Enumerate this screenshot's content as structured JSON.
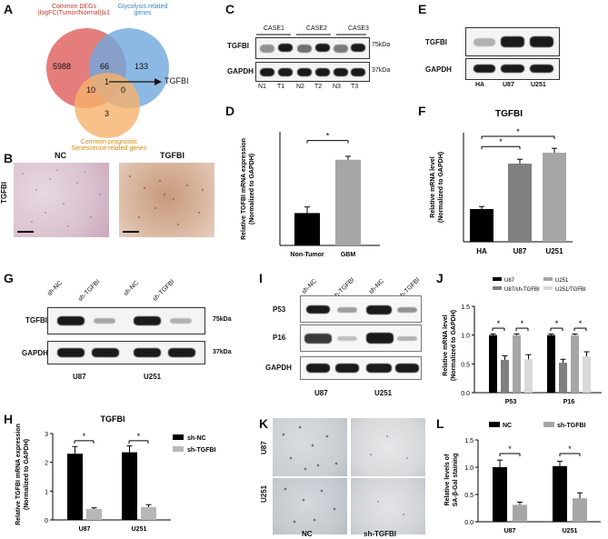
{
  "panel_labels": [
    "A",
    "B",
    "C",
    "D",
    "E",
    "F",
    "G",
    "H",
    "I",
    "J",
    "K",
    "L"
  ],
  "panel_a": {
    "set1_label_line1": "Common DEGs",
    "set1_label_line2": "|logFC(Tumor/Normal)|≥1",
    "set2_label_line1": "Glycolysis related",
    "set2_label_line2": "genes",
    "set3_label_line1": "Common prognostic",
    "set3_label_line2": "Senescence related genes",
    "counts": {
      "only1": "5988",
      "one_two": "66",
      "only2": "133",
      "one_three": "10",
      "center": "1",
      "two_three": "0",
      "only3": "3"
    },
    "arrow_label": "TGFBI",
    "colors": {
      "set1": "#e06666",
      "set2": "#6fa8dc",
      "set3": "#f6b26b"
    }
  },
  "panel_b": {
    "col1": "NC",
    "col2": "TGFBI",
    "row": "TGFBI"
  },
  "panel_c": {
    "cases": [
      "CASE1",
      "CASE2",
      "CASE3"
    ],
    "rows": [
      "TGFBI",
      "GAPDH"
    ],
    "kda": [
      "75kDa",
      "37kDa"
    ],
    "lanes": [
      "N1",
      "T1",
      "N2",
      "T2",
      "N3",
      "T3"
    ]
  },
  "panel_d": {
    "ylabel_line1": "Relative TGFBI mRNA expression",
    "ylabel_line2": "(Normalized to GAPDH)",
    "sig": "*",
    "chart_data": {
      "type": "bar",
      "categories": [
        "Non-Tumor",
        "GBM"
      ],
      "values": [
        0.37,
        0.98
      ],
      "errors": [
        0.07,
        0.04
      ],
      "ylim": [
        0,
        1.3
      ],
      "colors": [
        "#000000",
        "#a6a6a6"
      ]
    }
  },
  "panel_e": {
    "rows": [
      "TGFBI",
      "GAPDH"
    ],
    "lanes": [
      "HA",
      "U87",
      "U251"
    ]
  },
  "panel_f": {
    "title": "TGFBI",
    "ylabel_line1": "Relative mRNA level",
    "ylabel_line2": "(Normalized to GAPDH)",
    "sig": [
      "*",
      "*"
    ],
    "chart_data": {
      "type": "bar",
      "title": "TGFBI",
      "categories": [
        "HA",
        "U87",
        "U251"
      ],
      "values": [
        0.9,
        2.15,
        2.45
      ],
      "errors": [
        0.07,
        0.12,
        0.12
      ],
      "ylim": [
        0,
        3.0
      ],
      "colors": [
        "#000000",
        "#808080",
        "#a6a6a6"
      ]
    }
  },
  "panel_g": {
    "lanes": [
      "sh-NC",
      "sh-TGFBI",
      "sh-NC",
      "sh-TGFBI"
    ],
    "rows": [
      "TGFBI",
      "GAPDH"
    ],
    "kda": [
      "75kDa",
      "37kDa"
    ],
    "groups": [
      "U87",
      "U251"
    ]
  },
  "panel_h": {
    "title": "TGFBI",
    "ylabel_line1": "Relative TGFBI mRNA expression",
    "ylabel_line2": "(Normalized to GAPDH)",
    "yticks": [
      "0",
      "1",
      "2",
      "3"
    ],
    "sig": [
      "*",
      "*"
    ],
    "chart_data": {
      "type": "bar",
      "title": "TGFBI",
      "categories": [
        "U87",
        "U251"
      ],
      "series": [
        {
          "name": "sh-NC",
          "values": [
            2.3,
            2.35
          ],
          "errors": [
            0.25,
            0.22
          ],
          "color": "#000000"
        },
        {
          "name": "sh-TGFBI",
          "values": [
            0.38,
            0.45
          ],
          "errors": [
            0.04,
            0.08
          ],
          "color": "#b7b7b7"
        }
      ],
      "ylim": [
        0,
        3
      ],
      "legend": "right"
    }
  },
  "panel_i": {
    "lanes": [
      "sh-NC",
      "sh-TGFBI",
      "sh-NC",
      "sh-TGFBI"
    ],
    "rows": [
      "P53",
      "P16",
      "GAPDH"
    ],
    "groups": [
      "U87",
      "U251"
    ]
  },
  "panel_j": {
    "ylabel_line1": "Relative mRNA level",
    "ylabel_line2": "(Normalized to GAPDH)",
    "yticks": [
      "0.0",
      "0.5",
      "1.0",
      "1.5"
    ],
    "sig": [
      "*",
      "*",
      "*",
      "*"
    ],
    "chart_data": {
      "type": "bar",
      "categories": [
        "P53",
        "P16"
      ],
      "series": [
        {
          "name": "U87",
          "values": [
            1.0,
            1.0
          ],
          "errors": [
            0.02,
            0.02
          ],
          "color": "#000000"
        },
        {
          "name": "U87/sh-TGFBI",
          "values": [
            0.57,
            0.52
          ],
          "errors": [
            0.07,
            0.06
          ],
          "color": "#808080"
        },
        {
          "name": "U251",
          "values": [
            1.0,
            1.0
          ],
          "errors": [
            0.02,
            0.02
          ],
          "color": "#a6a6a6"
        },
        {
          "name": "U251/TGFBI",
          "values": [
            0.58,
            0.63
          ],
          "errors": [
            0.08,
            0.08
          ],
          "color": "#d9d9d9"
        }
      ],
      "ylim": [
        0,
        1.5
      ],
      "legend": "top"
    }
  },
  "panel_k": {
    "rows": [
      "U87",
      "U251"
    ],
    "cols": [
      "NC",
      "sh-TGFBI"
    ]
  },
  "panel_l": {
    "ylabel_line1": "Relative levels of",
    "ylabel_line2": "SA-β-Gal staining",
    "yticks": [
      "0.0",
      "0.5",
      "1.0",
      "1.5"
    ],
    "sig": [
      "*",
      "*"
    ],
    "chart_data": {
      "type": "bar",
      "categories": [
        "U87",
        "U251"
      ],
      "series": [
        {
          "name": "NC",
          "values": [
            1.0,
            1.02
          ],
          "errors": [
            0.13,
            0.09
          ],
          "color": "#000000"
        },
        {
          "name": "sh-TGFBI",
          "values": [
            0.31,
            0.43
          ],
          "errors": [
            0.05,
            0.1
          ],
          "color": "#a6a6a6"
        }
      ],
      "ylim": [
        0,
        1.5
      ],
      "legend": "top"
    }
  }
}
